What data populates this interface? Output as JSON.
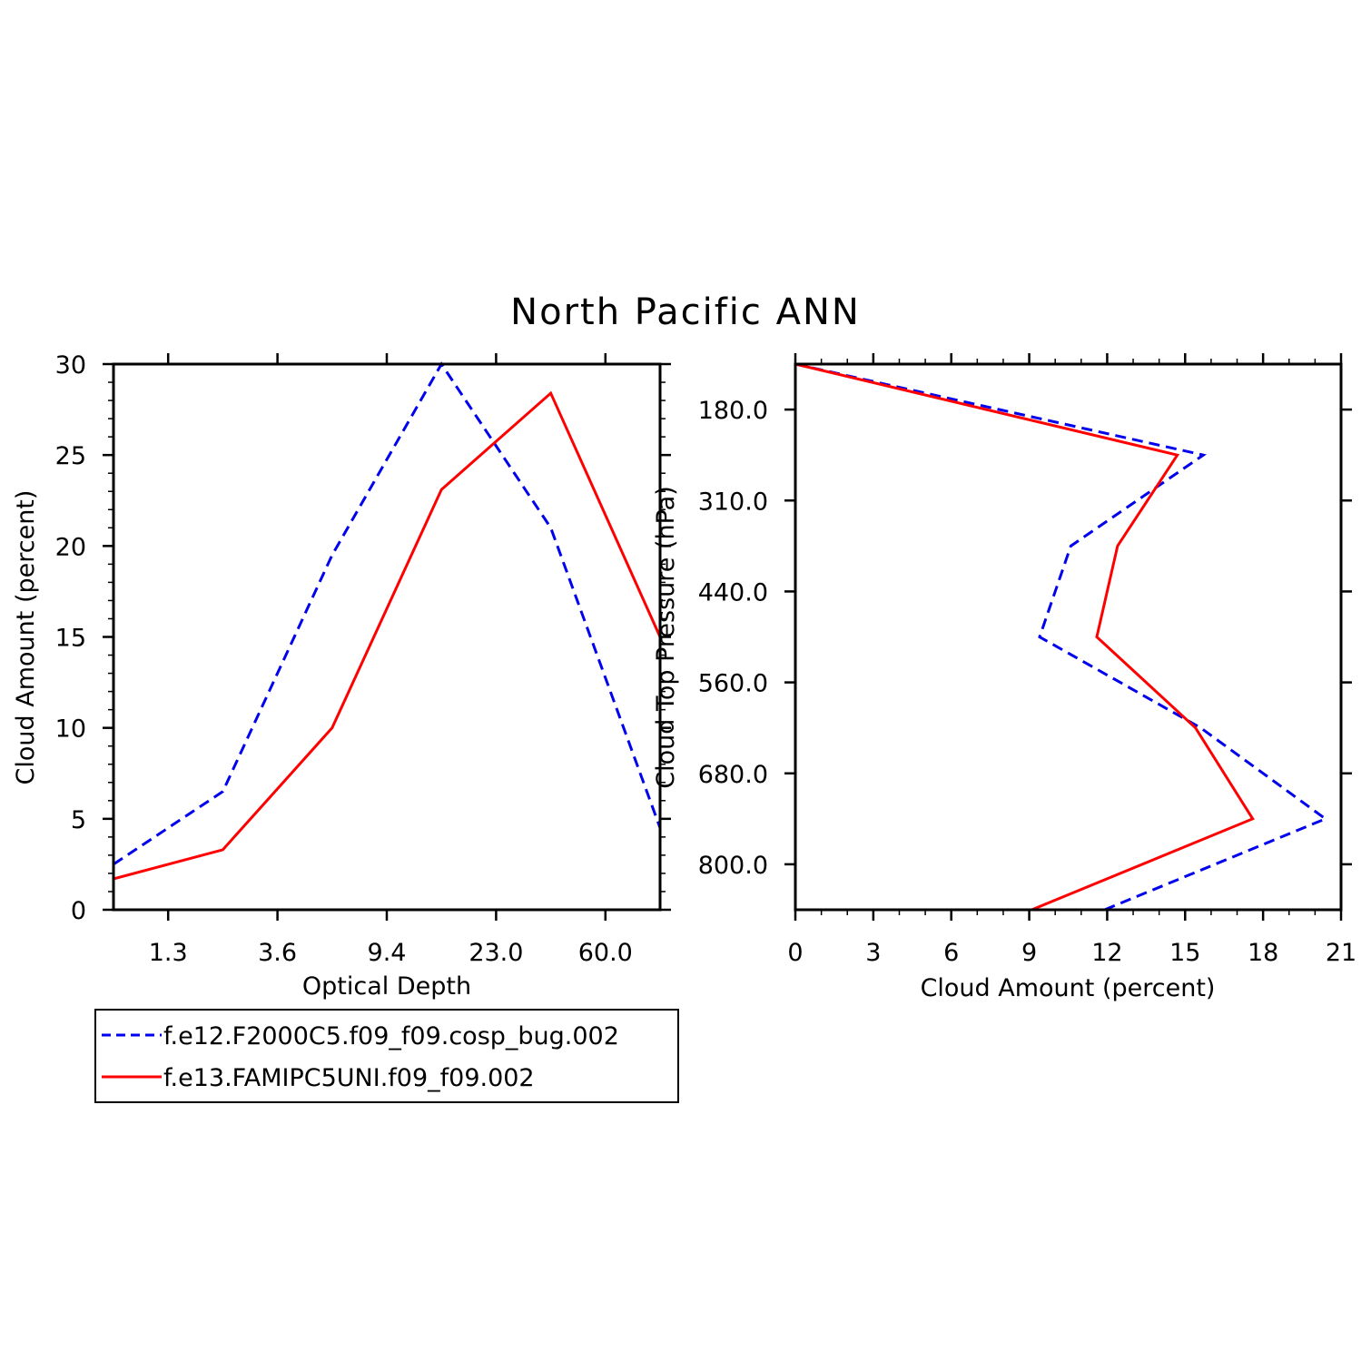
{
  "title": "North Pacific ANN",
  "colors": {
    "series_1": "#0000ee",
    "series_2": "#ff0000",
    "axes": "#000000"
  },
  "legend": {
    "entries": [
      {
        "label": "f.e12.F2000C5.f09_f09.cosp_bug.002",
        "color": "#0000ee",
        "style": "dashed"
      },
      {
        "label": "f.e13.FAMIPC5UNI.f09_f09.002",
        "color": "#ff0000",
        "style": "solid"
      }
    ]
  },
  "chart_data": [
    {
      "type": "line",
      "xlabel": "Optical Depth",
      "ylabel": "Cloud Amount (percent)",
      "x_index": [
        0,
        1,
        2,
        3,
        4,
        5
      ],
      "xtick_labels": [
        "1.3",
        "3.6",
        "9.4",
        "23.0",
        "60.0"
      ],
      "xtick_positions": [
        0.5,
        1.5,
        2.5,
        3.5,
        4.5
      ],
      "xlim": [
        0,
        5
      ],
      "ylim": [
        0,
        30
      ],
      "yticks": [
        0,
        5,
        10,
        15,
        20,
        25,
        30
      ],
      "series": [
        {
          "name": "f.e12.F2000C5.f09_f09.cosp_bug.002",
          "values": [
            2.5,
            6.5,
            19.5,
            30.0,
            21.0,
            4.5
          ]
        },
        {
          "name": "f.e13.FAMIPC5UNI.f09_f09.002",
          "values": [
            1.7,
            3.3,
            10.0,
            23.1,
            28.4,
            15.0
          ]
        }
      ]
    },
    {
      "type": "line",
      "orientation": "vertical-profile",
      "xlabel": "Cloud Amount (percent)",
      "ylabel": "Cloud Top Pressure (hPa)",
      "xlim": [
        0,
        21
      ],
      "xticks": [
        0,
        3,
        6,
        9,
        12,
        15,
        18,
        21
      ],
      "ylim_pressure": [
        800.0,
        180.0
      ],
      "ytick_labels": [
        "180.0",
        "310.0",
        "440.0",
        "560.0",
        "680.0",
        "800.0"
      ],
      "pressure_index": [
        -0.5,
        0.5,
        1.5,
        2.5,
        3.5,
        4.5,
        5.5
      ],
      "series": [
        {
          "name": "f.e12.F2000C5.f09_f09.cosp_bug.002",
          "values": [
            0.0,
            15.7,
            10.6,
            9.4,
            15.6,
            20.4,
            11.9
          ]
        },
        {
          "name": "f.e13.FAMIPC5UNI.f09_f09.002",
          "values": [
            0.0,
            14.7,
            12.4,
            11.6,
            15.4,
            17.6,
            9.1
          ]
        }
      ]
    }
  ]
}
